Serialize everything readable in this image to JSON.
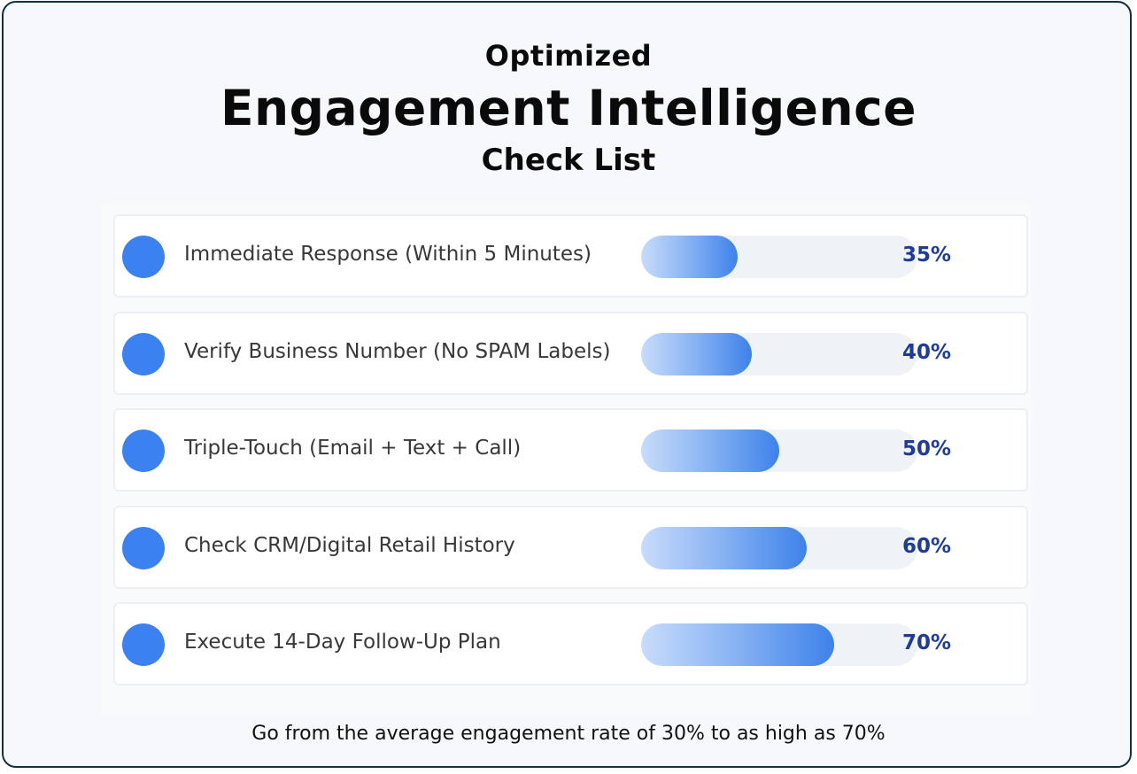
{
  "header": {
    "line1": "Optimized",
    "line2": "Engagement Intelligence",
    "line3": "Check List"
  },
  "chart_data": {
    "type": "bar",
    "orientation": "horizontal",
    "categories": [
      "Immediate Response (Within 5 Minutes)",
      "Verify Business Number (No SPAM Labels)",
      "Triple-Touch (Email + Text + Call)",
      "Check CRM/Digital Retail History",
      "Execute 14-Day Follow-Up Plan"
    ],
    "values": [
      35,
      40,
      50,
      60,
      70
    ],
    "value_labels": [
      "35%",
      "40%",
      "50%",
      "60%",
      "70%"
    ],
    "xlim": [
      0,
      100
    ],
    "bar_color": "#3e82ea",
    "bar_gradient_start": "#c8dcfb",
    "dot_color": "#3b82f0",
    "label_color": "#1e3c96"
  },
  "footer": {
    "text": "Go from the average engagement rate of 30% to as high as 70%"
  }
}
